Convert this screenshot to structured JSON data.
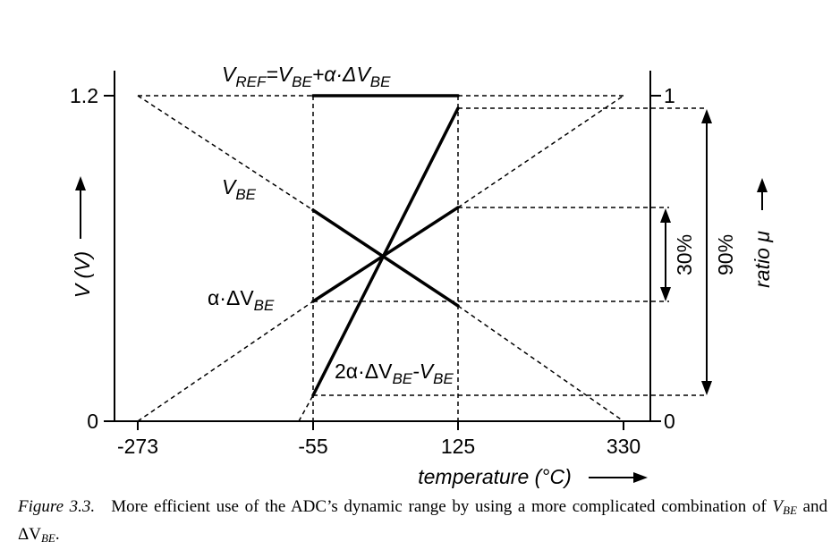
{
  "diagram": {
    "left_axis": {
      "label": "V (V)",
      "ticks": [
        "1.2",
        "0"
      ]
    },
    "right_axis": {
      "label": "ratio μ",
      "ticks": [
        "1",
        "0"
      ]
    },
    "x_axis": {
      "label": "temperature (°C)",
      "ticks": [
        "-273",
        "-55",
        "125",
        "330"
      ]
    },
    "curves": {
      "vref": {
        "main": "V",
        "sub1": "REF",
        "mid": "=V",
        "sub2": "BE",
        "tail": "+α·ΔV",
        "sub3": "BE"
      },
      "vbe": {
        "main": "V",
        "sub": "BE"
      },
      "alpha_dvbe": {
        "main": "α·ΔV",
        "sub": "BE"
      },
      "combo": {
        "main": "2α·ΔV",
        "sub1": "BE",
        "mid": "-V",
        "sub2": "BE"
      }
    },
    "ranges": [
      {
        "label": "30%"
      },
      {
        "label": "90%"
      }
    ]
  },
  "caption": {
    "figure": "Figure 3.3.",
    "text1": "More efficient use of the ADC’s dynamic range by using a more complicated combination of ",
    "v": "V",
    "be1": "BE",
    "and": " and ",
    "dv": "ΔV",
    "be2": "BE",
    "end": "."
  }
}
